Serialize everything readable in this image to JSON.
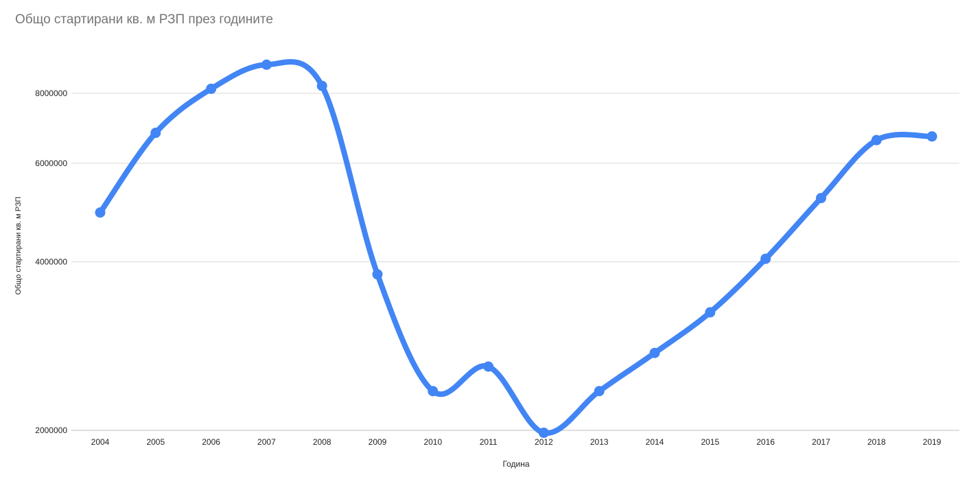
{
  "chart_data": {
    "type": "line",
    "title": "Общо стартирани кв. м РЗП през годините",
    "xlabel": "Година",
    "ylabel": "Общо стартирани кв. м РЗП",
    "y_scale": "log",
    "ylim": [
      2000000,
      9000000
    ],
    "y_ticks": [
      2000000,
      4000000,
      6000000,
      8000000
    ],
    "y_tick_labels": [
      "2000000",
      "4000000",
      "6000000",
      "8000000"
    ],
    "grid": true,
    "smooth": true,
    "line_color": "#4285f4",
    "categories": [
      "2004",
      "2005",
      "2006",
      "2007",
      "2008",
      "2009",
      "2010",
      "2011",
      "2012",
      "2013",
      "2014",
      "2015",
      "2016",
      "2017",
      "2018",
      "2019"
    ],
    "series": [
      {
        "values": [
          4900000,
          6800000,
          8150000,
          9000000,
          8250000,
          3800000,
          2350000,
          2600000,
          1980000,
          2350000,
          2750000,
          3250000,
          4050000,
          5200000,
          6600000,
          6700000
        ]
      }
    ]
  }
}
